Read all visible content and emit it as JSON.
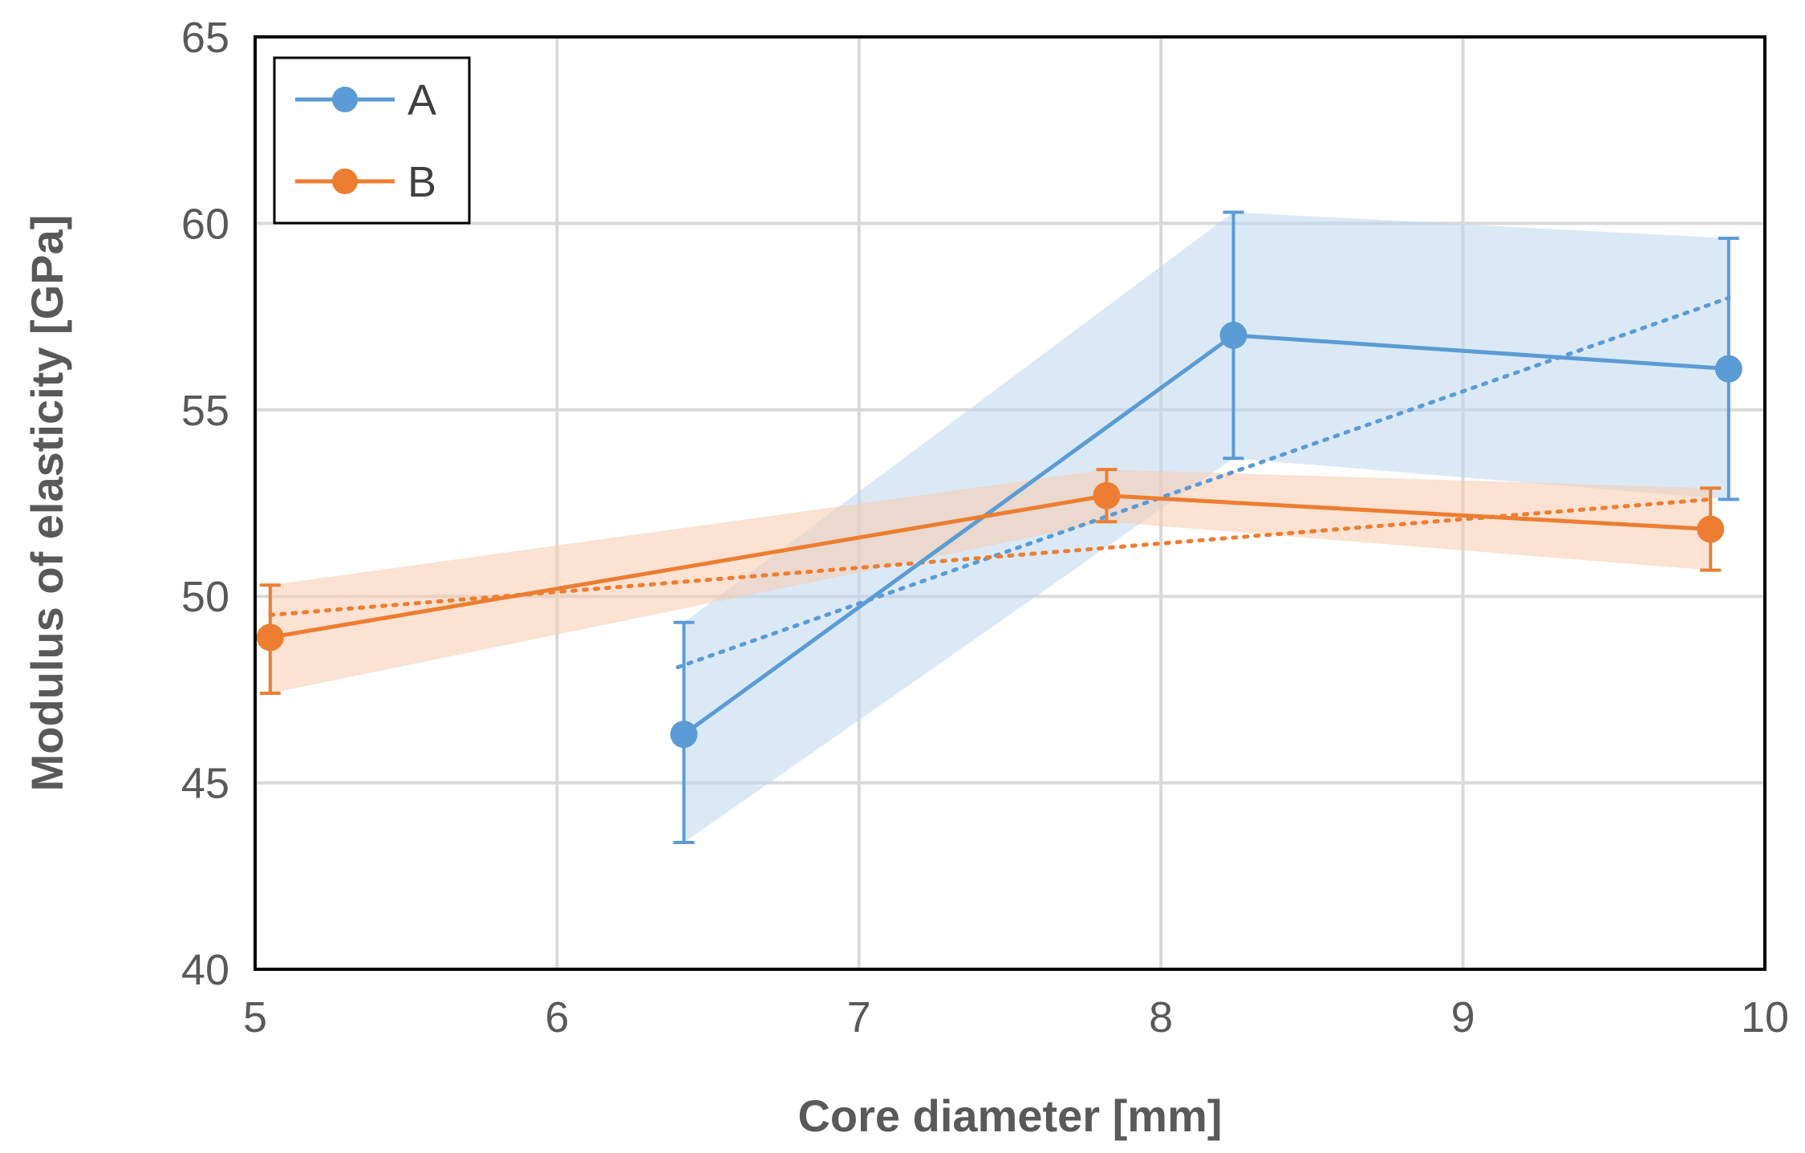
{
  "chart_data": {
    "type": "line",
    "title": "",
    "xlabel": "Core diameter [mm]",
    "ylabel": "Modulus of elasticity [GPa]",
    "xlim": [
      5,
      10
    ],
    "ylim": [
      40,
      65
    ],
    "xticks": [
      "5",
      "6",
      "7",
      "8",
      "9",
      "10"
    ],
    "yticks": [
      "40",
      "45",
      "50",
      "55",
      "60",
      "65"
    ],
    "grid": true,
    "legend_position": "top-left",
    "series": [
      {
        "name": "A",
        "color": "#5b9bd5",
        "band_color": "#bdd7ee",
        "x": [
          6.42,
          8.24,
          9.88
        ],
        "y": [
          46.3,
          57.0,
          56.1
        ],
        "err_low": [
          43.4,
          53.7,
          52.6
        ],
        "err_high": [
          49.3,
          60.3,
          59.6
        ],
        "trend": {
          "x": [
            6.4,
            9.88
          ],
          "y": [
            48.1,
            58.0
          ]
        }
      },
      {
        "name": "B",
        "color": "#ed7d31",
        "band_color": "#f8cbad",
        "x": [
          5.05,
          7.82,
          9.82
        ],
        "y": [
          48.9,
          52.7,
          51.8
        ],
        "err_low": [
          47.4,
          52.0,
          50.7
        ],
        "err_high": [
          50.3,
          53.4,
          52.9
        ],
        "trend": {
          "x": [
            5.05,
            9.82
          ],
          "y": [
            49.5,
            52.6
          ]
        }
      }
    ]
  }
}
